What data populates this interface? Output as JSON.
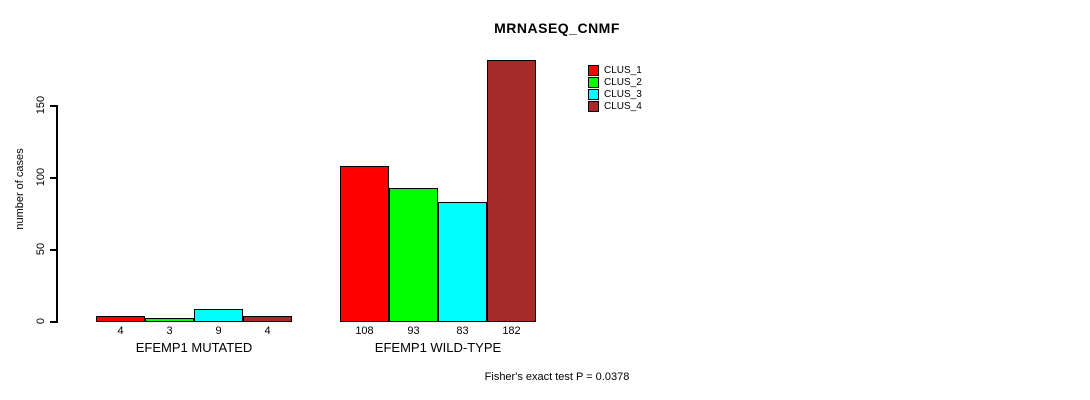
{
  "chart_data": {
    "type": "bar",
    "title": "MRNASEQ_CNMF",
    "xlabel": "",
    "ylabel": "number of cases",
    "categories": [
      "EFEMP1 MUTATED",
      "EFEMP1 WILD-TYPE"
    ],
    "series": [
      {
        "name": "CLUS_1",
        "color": "#ff0000",
        "values": [
          4,
          108
        ]
      },
      {
        "name": "CLUS_2",
        "color": "#00ff00",
        "values": [
          3,
          93
        ]
      },
      {
        "name": "CLUS_3",
        "color": "#00ffff",
        "values": [
          9,
          83
        ]
      },
      {
        "name": "CLUS_4",
        "color": "#a52a2a",
        "values": [
          4,
          182
        ]
      }
    ],
    "yticks": [
      0,
      50,
      100,
      150
    ],
    "ylim": [
      0,
      186
    ],
    "grid": false,
    "bar_value_labels_shown": true,
    "legend_position": "top-right-inside",
    "annotation": "Fisher's exact test P = 0.0378"
  }
}
